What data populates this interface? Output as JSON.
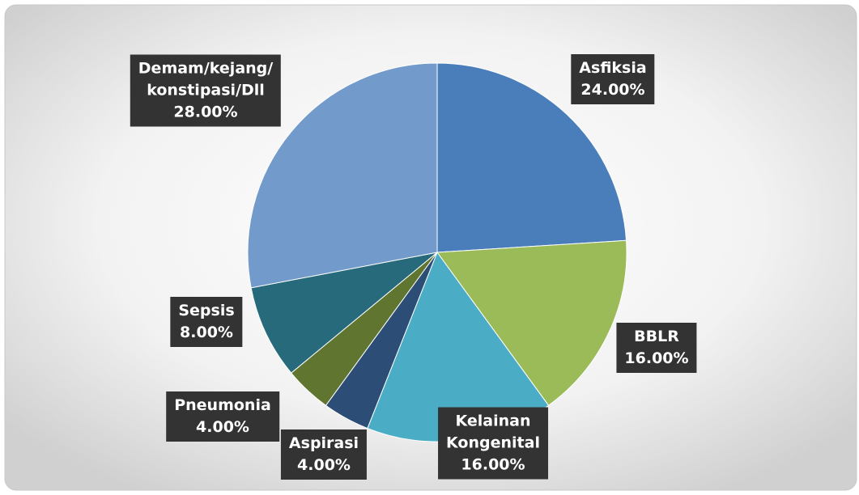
{
  "chart_data": {
    "type": "pie",
    "categories": [
      "Asfiksia",
      "BBLR",
      "Kelainan\nKongenital",
      "Aspirasi",
      "Pneumonia",
      "Sepsis",
      "Demam/kejang/\nkonstipasi/Dll"
    ],
    "values": [
      24,
      16,
      16,
      4,
      4,
      8,
      28
    ],
    "value_labels": [
      "24.00%",
      "16.00%",
      "16.00%",
      "4.00%",
      "4.00%",
      "8.00%",
      "28.00%"
    ],
    "colors": [
      "#4a7ebb",
      "#9bbb59",
      "#4bacc6",
      "#2c4d75",
      "#5f7530",
      "#276a7c",
      "#729aca"
    ]
  }
}
